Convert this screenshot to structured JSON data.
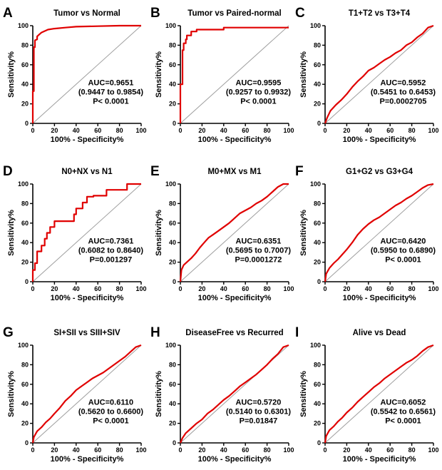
{
  "figure": {
    "axis_common": {
      "xlabel": "100% - Specificity%",
      "ylabel": "Sensitivity%",
      "xlim": [
        0,
        100
      ],
      "ylim": [
        0,
        100
      ],
      "xticks": [
        0,
        20,
        40,
        60,
        80,
        100
      ],
      "yticks": [
        0,
        20,
        40,
        60,
        80,
        100
      ],
      "grid": false,
      "line_color": "#e00000",
      "diagonal_color": "#9e9e9e"
    }
  },
  "chart_data": [
    {
      "type": "line",
      "letter": "A",
      "title": "Tumor vs Normal",
      "xlabel": "100% - Specificity%",
      "ylabel": "Sensitivity%",
      "annotation": [
        "AUC=0.9651",
        "(0.9447 to 0.9854)",
        "P< 0.0001"
      ],
      "series": [
        {
          "name": "",
          "x": [
            0,
            0,
            1,
            1,
            2,
            2,
            2,
            4,
            4,
            6,
            8,
            10,
            14,
            20,
            30,
            40,
            60,
            80,
            100
          ],
          "y": [
            0,
            33,
            33,
            78,
            78,
            82,
            85,
            86,
            89,
            91,
            93,
            94,
            96,
            97,
            98,
            99,
            99.5,
            100,
            100
          ]
        }
      ]
    },
    {
      "type": "line",
      "letter": "B",
      "title": "Tumor vs Paired-normal",
      "xlabel": "100% - Specificity%",
      "ylabel": "Sensitivity%",
      "annotation": [
        "AUC=0.9595",
        "(0.9257 to 0.9932)",
        "P< 0.0001"
      ],
      "series": [
        {
          "name": "",
          "x": [
            0,
            0,
            2,
            2,
            3,
            3,
            5,
            5,
            6,
            6,
            10,
            10,
            15,
            15,
            40,
            40,
            100
          ],
          "y": [
            0,
            40,
            40,
            75,
            75,
            82,
            82,
            86,
            86,
            90,
            90,
            94,
            94,
            96,
            96,
            98,
            98
          ]
        }
      ]
    },
    {
      "type": "line",
      "letter": "C",
      "title": "T1+T2 vs T3+T4",
      "xlabel": "100% - Specificity%",
      "ylabel": "Sensitivity%",
      "annotation": [
        "AUC=0.5952",
        "(0.5451 to 0.6453)",
        "P=0.0002705"
      ],
      "series": [
        {
          "name": "",
          "x": [
            0,
            2,
            5,
            10,
            15,
            20,
            25,
            30,
            35,
            40,
            45,
            50,
            55,
            60,
            65,
            70,
            75,
            80,
            85,
            90,
            95,
            100
          ],
          "y": [
            0,
            6,
            13,
            19,
            24,
            30,
            37,
            43,
            48,
            54,
            57,
            61,
            65,
            68,
            72,
            75,
            80,
            83,
            88,
            92,
            98,
            100
          ]
        }
      ]
    },
    {
      "type": "line",
      "letter": "D",
      "title": "N0+NX vs N1",
      "xlabel": "100% - Specificity%",
      "ylabel": "Sensitivity%",
      "annotation": [
        "AUC=0.7361",
        "(0.6082 to 0.8640)",
        "P=0.001297"
      ],
      "series": [
        {
          "name": "",
          "x": [
            0,
            0,
            2,
            2,
            4,
            4,
            8,
            8,
            11,
            11,
            13,
            13,
            16,
            16,
            20,
            20,
            38,
            38,
            40,
            40,
            46,
            46,
            50,
            50,
            56,
            56,
            68,
            68,
            87,
            87,
            100
          ],
          "y": [
            0,
            12,
            12,
            19,
            19,
            31,
            31,
            37,
            37,
            44,
            44,
            50,
            50,
            56,
            56,
            62,
            62,
            69,
            69,
            75,
            75,
            81,
            81,
            87,
            87,
            88,
            88,
            94,
            94,
            100,
            100
          ]
        }
      ]
    },
    {
      "type": "line",
      "letter": "E",
      "title": "M0+MX vs M1",
      "xlabel": "100% - Specificity%",
      "ylabel": "Sensitivity%",
      "annotation": [
        "AUC=0.6351",
        "(0.5695 to 0.7007)",
        "P=0.0001272"
      ],
      "series": [
        {
          "name": "",
          "x": [
            0,
            1,
            3,
            6,
            10,
            14,
            18,
            22,
            26,
            30,
            35,
            40,
            45,
            50,
            55,
            60,
            65,
            70,
            75,
            80,
            85,
            90,
            95,
            100
          ],
          "y": [
            0,
            12,
            17,
            20,
            24,
            29,
            35,
            40,
            45,
            48,
            52,
            56,
            60,
            65,
            70,
            73,
            76,
            80,
            83,
            87,
            92,
            97,
            100,
            100
          ]
        }
      ]
    },
    {
      "type": "line",
      "letter": "F",
      "title": "G1+G2 vs G3+G4",
      "xlabel": "100% - Specificity%",
      "ylabel": "Sensitivity%",
      "annotation": [
        "AUC=0.6420",
        "(0.5950 to 0.6890)",
        "P< 0.0001"
      ],
      "series": [
        {
          "name": "",
          "x": [
            0,
            1,
            4,
            8,
            12,
            16,
            20,
            25,
            30,
            35,
            40,
            45,
            50,
            55,
            60,
            65,
            70,
            75,
            80,
            85,
            90,
            95,
            100
          ],
          "y": [
            0,
            8,
            14,
            19,
            23,
            28,
            33,
            40,
            48,
            54,
            59,
            63,
            66,
            70,
            74,
            78,
            81,
            85,
            88,
            92,
            96,
            99,
            100
          ]
        }
      ]
    },
    {
      "type": "line",
      "letter": "G",
      "title": "SI+SII vs SIII+SIV",
      "xlabel": "100% - Specificity%",
      "ylabel": "Sensitivity%",
      "annotation": [
        "AUC=0.6110",
        "(0.5620 to 0.6600)",
        "P< 0.0001"
      ],
      "series": [
        {
          "name": "",
          "x": [
            0,
            1,
            4,
            8,
            12,
            16,
            20,
            25,
            30,
            35,
            40,
            45,
            50,
            55,
            60,
            65,
            70,
            75,
            80,
            85,
            90,
            95,
            100
          ],
          "y": [
            0,
            6,
            12,
            16,
            21,
            25,
            30,
            36,
            43,
            48,
            54,
            58,
            62,
            66,
            69,
            72,
            76,
            80,
            84,
            88,
            93,
            98,
            100
          ]
        }
      ]
    },
    {
      "type": "line",
      "letter": "H",
      "title": "DiseaseFree vs Recurred",
      "xlabel": "100% - Specificity%",
      "ylabel": "Sensitivity%",
      "annotation": [
        "AUC=0.5720",
        "(0.5140 to 0.6301)",
        "P=0.01847"
      ],
      "series": [
        {
          "name": "",
          "x": [
            0,
            2,
            5,
            10,
            15,
            20,
            25,
            30,
            35,
            40,
            45,
            50,
            55,
            60,
            65,
            70,
            75,
            80,
            85,
            90,
            95,
            100
          ],
          "y": [
            0,
            5,
            10,
            15,
            20,
            24,
            30,
            34,
            39,
            44,
            48,
            53,
            58,
            62,
            66,
            70,
            75,
            80,
            86,
            91,
            98,
            100
          ]
        }
      ]
    },
    {
      "type": "line",
      "letter": "I",
      "title": "Alive vs Dead",
      "xlabel": "100% - Specificity%",
      "ylabel": "Sensitivity%",
      "annotation": [
        "AUC=0.6052",
        "(0.5542 to 0.6561)",
        "P< 0.0001"
      ],
      "series": [
        {
          "name": "",
          "x": [
            0,
            1,
            4,
            8,
            12,
            16,
            20,
            25,
            30,
            35,
            40,
            45,
            50,
            55,
            60,
            65,
            70,
            75,
            80,
            85,
            90,
            95,
            100
          ],
          "y": [
            0,
            7,
            13,
            17,
            22,
            26,
            31,
            36,
            42,
            47,
            52,
            57,
            61,
            66,
            70,
            74,
            78,
            82,
            85,
            89,
            94,
            98,
            100
          ]
        }
      ]
    }
  ]
}
